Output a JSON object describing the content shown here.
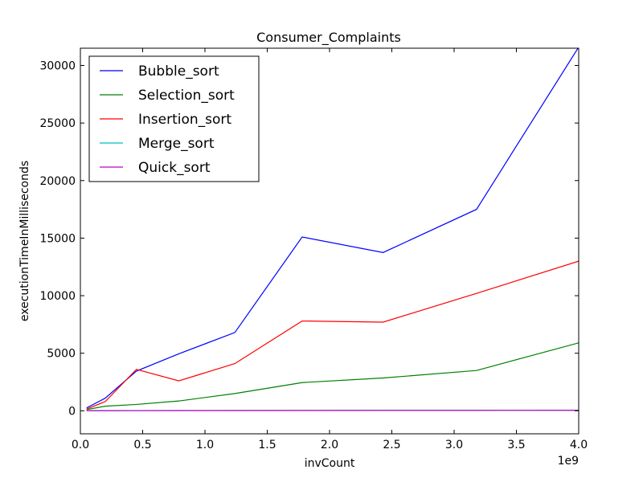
{
  "chart_data": {
    "type": "line",
    "title": "Consumer_Complaints",
    "xlabel": "invCount",
    "ylabel": "executionTimeInMilliseconds",
    "x_offset_label": "1e9",
    "xlim": [
      0.0,
      4.0
    ],
    "ylim": [
      -2000,
      31500
    ],
    "x_ticks": [
      0.0,
      0.5,
      1.0,
      1.5,
      2.0,
      2.5,
      3.0,
      3.5,
      4.0
    ],
    "x_tick_labels": [
      "0.0",
      "0.5",
      "1.0",
      "1.5",
      "2.0",
      "2.5",
      "3.0",
      "3.5",
      "4.0"
    ],
    "y_ticks": [
      0,
      5000,
      10000,
      15000,
      20000,
      25000,
      30000
    ],
    "y_tick_labels": [
      "0",
      "5000",
      "10000",
      "15000",
      "20000",
      "25000",
      "30000"
    ],
    "grid": false,
    "legend_position": "upper-left",
    "x": [
      0.05,
      0.2,
      0.45,
      0.79,
      1.24,
      1.78,
      2.43,
      3.18,
      4.0
    ],
    "series": [
      {
        "name": "Bubble_sort",
        "color": "#0000ff",
        "values": [
          250,
          1100,
          3450,
          4950,
          6800,
          15100,
          13750,
          17500,
          31600
        ]
      },
      {
        "name": "Selection_sort",
        "color": "#008000",
        "values": [
          100,
          400,
          550,
          850,
          1500,
          2450,
          2850,
          3500,
          5900
        ]
      },
      {
        "name": "Insertion_sort",
        "color": "#ff0000",
        "values": [
          150,
          800,
          3600,
          2600,
          4100,
          7800,
          7700,
          10200,
          13000
        ]
      },
      {
        "name": "Merge_sort",
        "color": "#00bfbf",
        "values": [
          10,
          15,
          20,
          25,
          30,
          35,
          40,
          45,
          50
        ]
      },
      {
        "name": "Quick_sort",
        "color": "#bf00bf",
        "values": [
          5,
          8,
          12,
          15,
          18,
          25,
          30,
          35,
          40
        ]
      }
    ]
  }
}
